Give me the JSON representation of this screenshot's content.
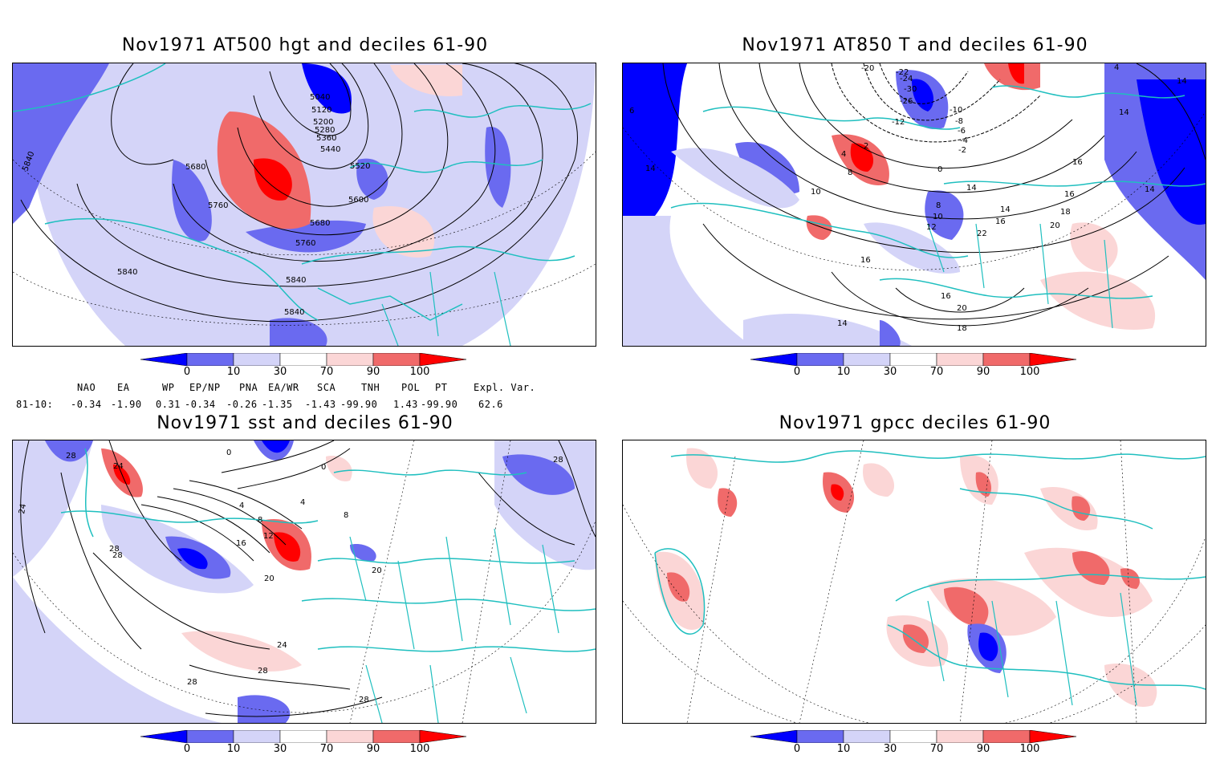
{
  "panels": [
    {
      "title": "Nov1971 AT500 hgt and deciles 61-90",
      "contour_labels": [
        "5040",
        "5120",
        "5200",
        "5280",
        "5360",
        "5440",
        "5520",
        "5600",
        "5680",
        "5760",
        "5680",
        "5760",
        "5840",
        "5840",
        "5840",
        "5840"
      ]
    },
    {
      "title": "Nov1971 AT850 T and deciles 61-90",
      "contour_labels": [
        "-20",
        "-22",
        "-24",
        "-26",
        "-30",
        "-12",
        "-10",
        "-8",
        "-6",
        "-4",
        "-2",
        "0",
        "2",
        "4",
        "8",
        "10",
        "14",
        "16",
        "16",
        "18",
        "20",
        "22",
        "16",
        "14",
        "12",
        "10",
        "8",
        "6",
        "4",
        "14",
        "14",
        "14",
        "14",
        "16",
        "20",
        "18",
        "16",
        "14"
      ]
    },
    {
      "title": "Nov1971 sst and deciles 61-90",
      "contour_labels": [
        "24",
        "24",
        "28",
        "28",
        "28",
        "0",
        "0",
        "4",
        "4",
        "8",
        "8",
        "12",
        "16",
        "20",
        "20",
        "24",
        "28",
        "28",
        "28",
        "28"
      ]
    },
    {
      "title": "Nov1971 gpcc deciles 61-90",
      "contour_labels": []
    }
  ],
  "colorbar": {
    "labels": [
      "0",
      "10",
      "30",
      "70",
      "90",
      "100"
    ],
    "colors": [
      "#0000ff",
      "#6a6af0",
      "#d4d4f8",
      "#ffffff",
      "#fbd6d6",
      "#f06a6a",
      "#ff0000"
    ]
  },
  "indices": {
    "headers": [
      "NAO",
      "EA",
      "WP",
      "EP/NP",
      "PNA",
      "EA/WR",
      "SCA",
      "TNH",
      "POL",
      "PT",
      "Expl. Var."
    ],
    "row_label": "81-10:",
    "values": [
      "-0.34",
      "-1.90",
      "0.31",
      "-0.34",
      "-0.26",
      "-1.35",
      "-1.43",
      "-99.90",
      "1.43",
      "-99.90",
      "62.6"
    ]
  }
}
